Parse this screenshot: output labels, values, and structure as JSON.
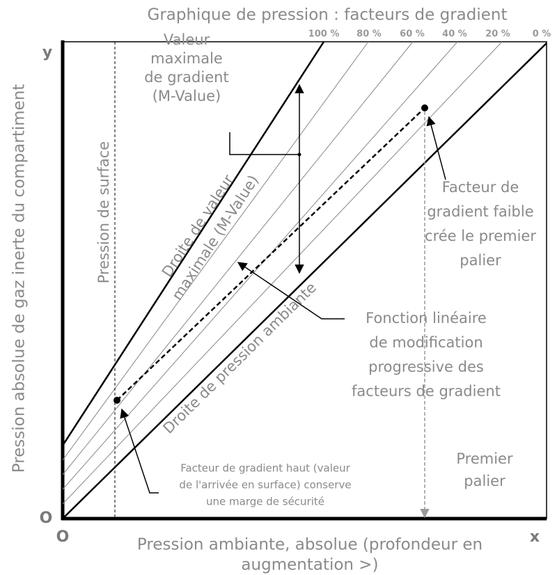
{
  "title": "Graphique de pression : facteurs de gradient",
  "axes": {
    "y": "y",
    "origin_y": "O",
    "origin_x": "O",
    "x": "x"
  },
  "y_axis_label": "Pression absolue de gaz inerte du compartiment",
  "x_axis_label": [
    "Pression ambiante, absolue (profondeur en",
    "augmentation >)"
  ],
  "percent_labels": [
    "100 %",
    "80 %",
    "60 %",
    "40 %",
    "20 %",
    "0 %"
  ],
  "labels": {
    "surface": "Pression de surface",
    "m_value_line": [
      "Droite de valeur",
      "maximale (M-Value)"
    ],
    "ambient_line": "Droite de pression ambiante",
    "m_value": [
      "Valeur",
      "maximale",
      "de gradient",
      "(M-Value)"
    ],
    "low_gf": [
      "Facteur de",
      "gradient faible",
      "crée le premier",
      "palier"
    ],
    "linear": [
      "Fonction linéaire",
      "de modification",
      "progressive des",
      "facteurs de gradient"
    ],
    "high_gf": [
      "Facteur de gradient haut (valeur",
      "de l'arrivée en surface) conserve",
      "une marge de sécurité"
    ],
    "first_stop": [
      "Premier",
      "palier"
    ]
  }
}
